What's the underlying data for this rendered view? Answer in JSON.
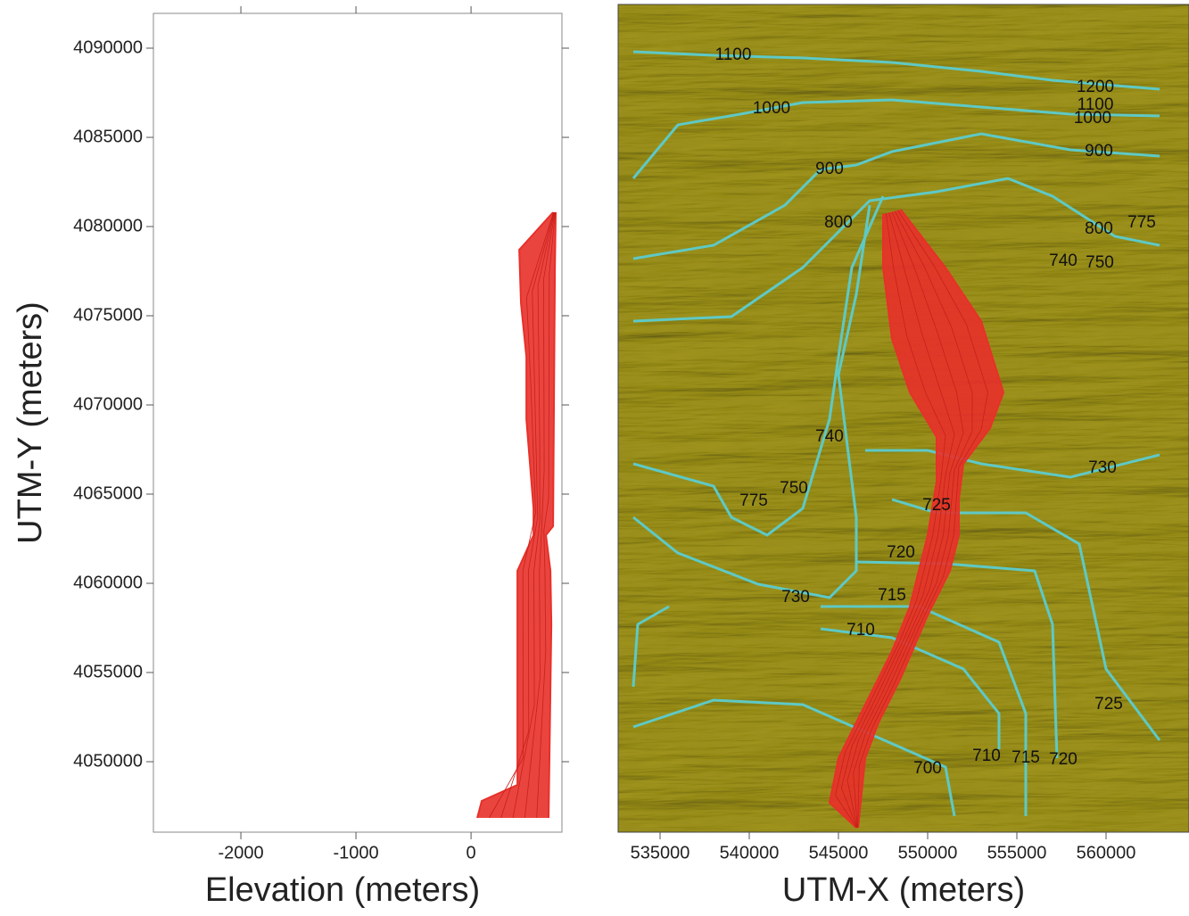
{
  "chart_data": [
    {
      "type": "line",
      "xlabel": "Elevation (meters)",
      "ylabel": "UTM-Y (meters)",
      "xlim": [
        -2760,
        790
      ],
      "ylim": [
        4046050,
        4091950
      ],
      "xticks": [
        -2000,
        -1000,
        0
      ],
      "yticks": [
        4050000,
        4055000,
        4060000,
        4065000,
        4070000,
        4075000,
        4080000,
        4085000,
        4090000
      ],
      "fill_between": true,
      "series": [
        {
          "color": "#e8302a",
          "x": [
            713,
            419,
            434,
            481,
            481,
            543,
            543,
            403,
            403,
            93,
            54
          ],
          "values": [
            4080800,
            4078700,
            4075700,
            4072700,
            4069200,
            4064200,
            4062700,
            4060700,
            4048700,
            4047800,
            4046850
          ]
        },
        {
          "color": "#e8302a",
          "x": [
            736,
            729,
            713,
            651,
            690,
            698,
            674
          ],
          "values": [
            4080800,
            4077700,
            4063200,
            4062700,
            4060700,
            4057700,
            4046850
          ]
        }
      ]
    },
    {
      "type": "map",
      "xlabel": "UTM-X (meters)",
      "xlim": [
        532650,
        564650
      ],
      "ylim": [
        4046050,
        4092450
      ],
      "xticks": [
        535000,
        540000,
        545000,
        550000,
        555000,
        560000
      ],
      "background": "#b8b040",
      "contour_color": "#5ec9c6",
      "fill_between": true,
      "series": [
        {
          "color": "#e8302a",
          "x": [
            547500,
            547500,
            548000,
            549000,
            550500,
            550500,
            550000,
            549000,
            548000,
            546250,
            545000,
            544500,
            546000
          ],
          "values": [
            4080700,
            4077700,
            4073700,
            4070700,
            4068200,
            4065700,
            4062700,
            4058700,
            4056200,
            4052700,
            4050200,
            4047700,
            4046300
          ]
        },
        {
          "color": "#e8302a",
          "x": [
            548500,
            551000,
            553000,
            554250,
            553500,
            552000,
            551750,
            551750,
            551250,
            550000,
            548500,
            547250,
            546500,
            546100
          ],
          "values": [
            4080950,
            4077700,
            4074700,
            4070700,
            4068700,
            4066700,
            4064700,
            4062700,
            4060700,
            4058200,
            4054700,
            4052200,
            4050200,
            4046300
          ]
        }
      ],
      "contours": [
        {
          "x": [
            533500,
            538000,
            543000,
            548000,
            553000,
            557000,
            563000
          ],
          "y": [
            4089800,
            4089600,
            4089450,
            4089200,
            4088700,
            4088200,
            4087700
          ]
        },
        {
          "x": [
            533500,
            536000,
            539500,
            543000,
            548000,
            553000,
            558000,
            563000
          ],
          "y": [
            4082700,
            4085700,
            4086300,
            4086950,
            4087100,
            4086700,
            4086300,
            4086200
          ]
        },
        {
          "x": [
            533500,
            538000,
            542000,
            544000,
            546000,
            548000,
            553000,
            558000,
            563000
          ],
          "y": [
            4078200,
            4078950,
            4081200,
            4083200,
            4083450,
            4084200,
            4085200,
            4084300,
            4083950
          ]
        },
        {
          "x": [
            533500,
            539000,
            543000,
            545000,
            546750,
            550500,
            554500,
            557000,
            560500,
            563000
          ],
          "y": [
            4074700,
            4074950,
            4077700,
            4079700,
            4081450,
            4081950,
            4082700,
            4081700,
            4079450,
            4078950
          ]
        },
        {
          "x": [
            533500,
            536000,
            540500,
            544500,
            546000,
            546000,
            545000,
            546000,
            546750
          ],
          "y": [
            4063700,
            4061700,
            4059950,
            4059200,
            4060700,
            4063700,
            4071700,
            4076200,
            4081200
          ]
        },
        {
          "x": [
            533500,
            538000,
            539000,
            541000,
            543000,
            544500,
            545000,
            545750,
            547500
          ],
          "y": [
            4066700,
            4065450,
            4063700,
            4062700,
            4064200,
            4069200,
            4072700,
            4077700,
            4081700
          ]
        },
        {
          "x": [
            546500,
            550000,
            553000,
            558000,
            563000
          ],
          "y": [
            4067450,
            4067450,
            4066700,
            4065950,
            4067200
          ]
        },
        {
          "x": [
            548000,
            550500,
            555500,
            558500,
            560000,
            563000
          ],
          "y": [
            4064700,
            4063950,
            4063950,
            4062200,
            4055200,
            4051200
          ]
        },
        {
          "x": [
            546000,
            551000,
            556000,
            557000,
            557250
          ],
          "y": [
            4061200,
            4061100,
            4060700,
            4057700,
            4050200
          ]
        },
        {
          "x": [
            544000,
            549500,
            554000,
            555500,
            555500
          ],
          "y": [
            4058700,
            4058700,
            4056700,
            4052700,
            4046950
          ]
        },
        {
          "x": [
            544000,
            548000,
            552000,
            554000,
            554000
          ],
          "y": [
            4057450,
            4056950,
            4055200,
            4052700,
            4050700
          ]
        },
        {
          "x": [
            533500,
            538000,
            543000,
            547000,
            551000,
            551500
          ],
          "y": [
            4051950,
            4053450,
            4053200,
            4051450,
            4049700,
            4046950
          ]
        },
        {
          "x": [
            533500,
            533750,
            535500
          ],
          "y": [
            4054200,
            4057700,
            4058700
          ]
        }
      ],
      "contour_labels": [
        {
          "text": "1100",
          "x": 539100,
          "y": 4089600
        },
        {
          "text": "1000",
          "x": 541250,
          "y": 4086600
        },
        {
          "text": "1200",
          "x": 559400,
          "y": 4087800
        },
        {
          "text": "1100",
          "x": 559400,
          "y": 4086800
        },
        {
          "text": "1000",
          "x": 559250,
          "y": 4086050
        },
        {
          "text": "900",
          "x": 559600,
          "y": 4084200
        },
        {
          "text": "900",
          "x": 544500,
          "y": 4083200
        },
        {
          "text": "800",
          "x": 545000,
          "y": 4080200
        },
        {
          "text": "800",
          "x": 559600,
          "y": 4079850
        },
        {
          "text": "775",
          "x": 562000,
          "y": 4080200
        },
        {
          "text": "740",
          "x": 557600,
          "y": 4078050
        },
        {
          "text": "750",
          "x": 559650,
          "y": 4077950
        },
        {
          "text": "740",
          "x": 544500,
          "y": 4068200
        },
        {
          "text": "750",
          "x": 542500,
          "y": 4065300
        },
        {
          "text": "775",
          "x": 540250,
          "y": 4064600
        },
        {
          "text": "725",
          "x": 550500,
          "y": 4064350
        },
        {
          "text": "730",
          "x": 559800,
          "y": 4066450
        },
        {
          "text": "720",
          "x": 548500,
          "y": 4061700
        },
        {
          "text": "715",
          "x": 548000,
          "y": 4059300
        },
        {
          "text": "730",
          "x": 542600,
          "y": 4059200
        },
        {
          "text": "710",
          "x": 546250,
          "y": 4057350
        },
        {
          "text": "700",
          "x": 550000,
          "y": 4049600
        },
        {
          "text": "710",
          "x": 553300,
          "y": 4050300
        },
        {
          "text": "715",
          "x": 555500,
          "y": 4050200
        },
        {
          "text": "720",
          "x": 557600,
          "y": 4050100
        },
        {
          "text": "725",
          "x": 560150,
          "y": 4053200
        }
      ]
    }
  ]
}
